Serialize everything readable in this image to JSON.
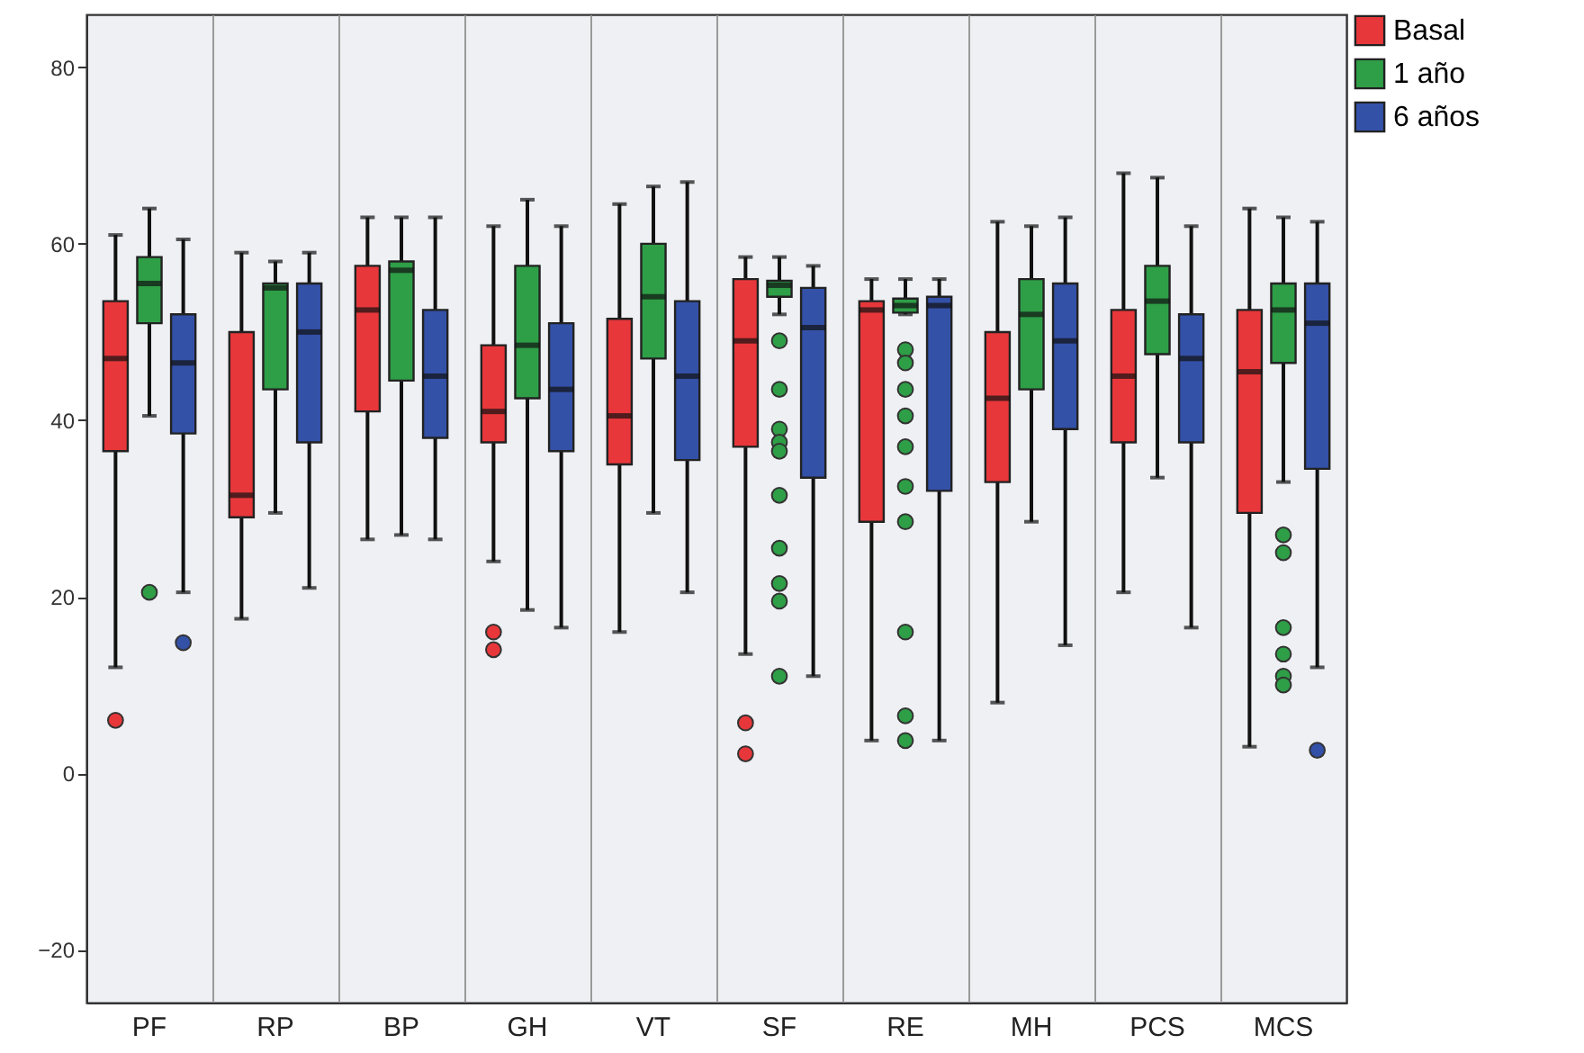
{
  "chart_data": {
    "type": "box",
    "categories": [
      "PF",
      "RP",
      "BP",
      "GH",
      "VT",
      "SF",
      "RE",
      "MH",
      "PCS",
      "MCS"
    ],
    "ylim": [
      -26,
      86
    ],
    "yticks": [
      -20,
      0,
      20,
      40,
      60,
      80
    ],
    "grid": "x",
    "legend": "top right",
    "series": [
      {
        "name": "Basal",
        "color": "#e8373a",
        "boxes": [
          {
            "low": 12,
            "q1": 36.5,
            "median": 47,
            "q3": 53.5,
            "high": 61,
            "outliers": [
              6
            ]
          },
          {
            "low": 17.5,
            "q1": 29,
            "median": 31.5,
            "q3": 50,
            "high": 59
          },
          {
            "low": 26.5,
            "q1": 41,
            "median": 52.5,
            "q3": 57.5,
            "high": 63
          },
          {
            "low": 24,
            "q1": 37.5,
            "median": 41,
            "q3": 48.5,
            "high": 62,
            "outliers": [
              16,
              14
            ]
          },
          {
            "low": 16,
            "q1": 35,
            "median": 40.5,
            "q3": 51.5,
            "high": 64.5
          },
          {
            "low": 13.5,
            "q1": 37,
            "median": 49,
            "q3": 56,
            "high": 58.5,
            "outliers": [
              5.7,
              2.2
            ]
          },
          {
            "low": 3.7,
            "q1": 28.5,
            "median": 52.5,
            "q3": 53.5,
            "high": 56
          },
          {
            "low": 8,
            "q1": 33,
            "median": 42.5,
            "q3": 50,
            "high": 62.5
          },
          {
            "low": 20.5,
            "q1": 37.5,
            "median": 45,
            "q3": 52.5,
            "high": 68
          },
          {
            "low": 3,
            "q1": 29.5,
            "median": 45.5,
            "q3": 52.5,
            "high": 64
          }
        ]
      },
      {
        "name": "1 año",
        "color": "#2e9e47",
        "boxes": [
          {
            "low": 40.5,
            "q1": 51,
            "median": 55.5,
            "q3": 58.5,
            "high": 64,
            "outliers": [
              20.5
            ]
          },
          {
            "low": 29.5,
            "q1": 43.5,
            "median": 55,
            "q3": 55.5,
            "high": 58
          },
          {
            "low": 27,
            "q1": 44.5,
            "median": 57,
            "q3": 58,
            "high": 63
          },
          {
            "low": 18.5,
            "q1": 42.5,
            "median": 48.5,
            "q3": 57.5,
            "high": 65
          },
          {
            "low": 29.5,
            "q1": 47,
            "median": 54,
            "q3": 60,
            "high": 66.5
          },
          {
            "low": 52,
            "q1": 54,
            "median": 55.3,
            "q3": 55.8,
            "high": 58.5,
            "outliers": [
              49,
              43.5,
              39,
              37.5,
              36.5,
              31.5,
              25.5,
              21.5,
              19.5,
              11
            ]
          },
          {
            "low": 52,
            "q1": 52.2,
            "median": 53,
            "q3": 53.8,
            "high": 56,
            "outliers": [
              48,
              46.5,
              43.5,
              40.5,
              37,
              32.5,
              28.5,
              16,
              6.5,
              3.7
            ]
          },
          {
            "low": 28.5,
            "q1": 43.5,
            "median": 52,
            "q3": 56,
            "high": 62
          },
          {
            "low": 33.5,
            "q1": 47.5,
            "median": 53.5,
            "q3": 57.5,
            "high": 67.5
          },
          {
            "low": 33,
            "q1": 46.5,
            "median": 52.5,
            "q3": 55.5,
            "high": 63,
            "outliers": [
              27,
              25,
              16.5,
              13.5,
              11,
              10
            ]
          }
        ]
      },
      {
        "name": "6 años",
        "color": "#3451a8",
        "boxes": [
          {
            "low": 20.5,
            "q1": 38.5,
            "median": 46.5,
            "q3": 52,
            "high": 60.5,
            "outliers": [
              14.8
            ]
          },
          {
            "low": 21,
            "q1": 37.5,
            "median": 50,
            "q3": 55.5,
            "high": 59
          },
          {
            "low": 26.5,
            "q1": 38,
            "median": 45,
            "q3": 52.5,
            "high": 63
          },
          {
            "low": 16.5,
            "q1": 36.5,
            "median": 43.5,
            "q3": 51,
            "high": 62
          },
          {
            "low": 20.5,
            "q1": 35.5,
            "median": 45,
            "q3": 53.5,
            "high": 67
          },
          {
            "low": 11,
            "q1": 33.5,
            "median": 50.5,
            "q3": 55,
            "high": 57.5
          },
          {
            "low": 3.7,
            "q1": 32,
            "median": 53,
            "q3": 54,
            "high": 56
          },
          {
            "low": 14.5,
            "q1": 39,
            "median": 49,
            "q3": 55.5,
            "high": 63
          },
          {
            "low": 16.5,
            "q1": 37.5,
            "median": 47,
            "q3": 52,
            "high": 62
          },
          {
            "low": 12,
            "q1": 34.5,
            "median": 51,
            "q3": 55.5,
            "high": 62.5,
            "outliers": [
              2.6
            ]
          }
        ]
      }
    ]
  }
}
